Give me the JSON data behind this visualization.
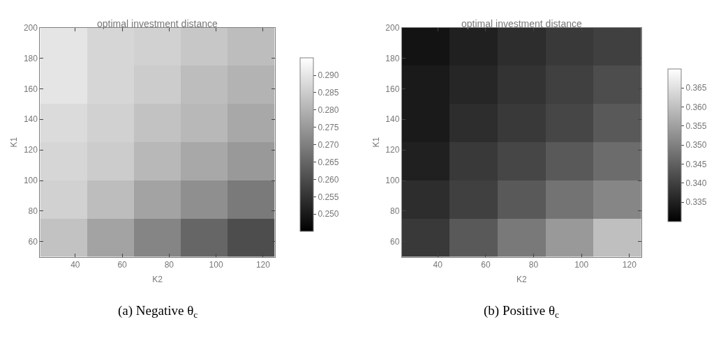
{
  "chart_data": [
    {
      "type": "heatmap",
      "title": "optimal investment distance",
      "xlabel": "K2",
      "ylabel": "K1",
      "annotations": [
        "(a) Negative θ$_{c}$"
      ],
      "x": [
        35,
        55,
        75,
        95,
        115
      ],
      "y": [
        187.5,
        162.5,
        137.5,
        112.5,
        87.5,
        62.5
      ],
      "cells": [
        [
          0.29,
          0.287,
          0.286,
          0.284,
          0.282
        ],
        [
          0.29,
          0.287,
          0.285,
          0.282,
          0.28
        ],
        [
          0.288,
          0.286,
          0.283,
          0.281,
          0.278
        ],
        [
          0.287,
          0.285,
          0.281,
          0.278,
          0.275
        ],
        [
          0.286,
          0.282,
          0.277,
          0.273,
          0.269
        ],
        [
          0.283,
          0.277,
          0.271,
          0.265,
          0.26
        ]
      ],
      "clim": [
        0.245,
        0.295
      ],
      "cticks": [
        {
          "value": 0.25,
          "label": "0.250"
        },
        {
          "value": 0.255,
          "label": "0.255"
        },
        {
          "value": 0.26,
          "label": "0.260"
        },
        {
          "value": 0.265,
          "label": "0.265"
        },
        {
          "value": 0.27,
          "label": "0.270"
        },
        {
          "value": 0.275,
          "label": "0.275"
        },
        {
          "value": 0.28,
          "label": "0.280"
        },
        {
          "value": 0.285,
          "label": "0.285"
        },
        {
          "value": 0.29,
          "label": "0.290"
        }
      ],
      "colors": [
        "#000000",
        "#ffffff"
      ],
      "xlim": [
        25,
        125
      ],
      "ylim": [
        50,
        200
      ],
      "xticks": [
        40,
        60,
        80,
        100,
        120
      ],
      "yticks": [
        60,
        80,
        100,
        120,
        140,
        160,
        180,
        200
      ]
    },
    {
      "type": "heatmap",
      "title": "optimal investment distance",
      "xlabel": "K2",
      "ylabel": "K1",
      "annotations": [
        "(b) Positive θ$_{c}$"
      ],
      "x": [
        35,
        55,
        75,
        95,
        115
      ],
      "y": [
        187.5,
        162.5,
        137.5,
        112.5,
        87.5,
        62.5
      ],
      "cells": [
        [
          0.333,
          0.335,
          0.337,
          0.339,
          0.34
        ],
        [
          0.334,
          0.336,
          0.338,
          0.34,
          0.342
        ],
        [
          0.334,
          0.337,
          0.339,
          0.341,
          0.344
        ],
        [
          0.335,
          0.339,
          0.341,
          0.344,
          0.347
        ],
        [
          0.337,
          0.34,
          0.344,
          0.348,
          0.351
        ],
        [
          0.339,
          0.344,
          0.349,
          0.354,
          0.36
        ]
      ],
      "clim": [
        0.33,
        0.37
      ],
      "cticks": [
        {
          "value": 0.335,
          "label": "0.335"
        },
        {
          "value": 0.34,
          "label": "0.340"
        },
        {
          "value": 0.345,
          "label": "0.345"
        },
        {
          "value": 0.35,
          "label": "0.350"
        },
        {
          "value": 0.355,
          "label": "0.355"
        },
        {
          "value": 0.36,
          "label": "0.360"
        },
        {
          "value": 0.365,
          "label": "0.365"
        }
      ],
      "colors": [
        "#000000",
        "#ffffff"
      ],
      "xlim": [
        25,
        125
      ],
      "ylim": [
        50,
        200
      ],
      "xticks": [
        40,
        60,
        80,
        100,
        120
      ],
      "yticks": [
        60,
        80,
        100,
        120,
        140,
        160,
        180,
        200
      ]
    }
  ]
}
